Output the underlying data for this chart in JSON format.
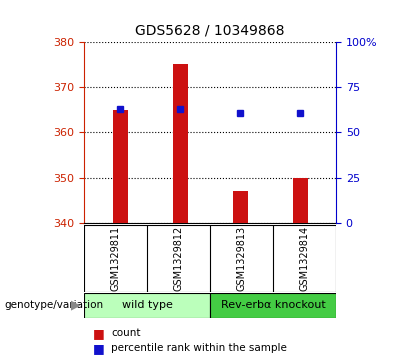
{
  "title": "GDS5628 / 10349868",
  "samples": [
    "GSM1329811",
    "GSM1329812",
    "GSM1329813",
    "GSM1329814"
  ],
  "counts": [
    365,
    375,
    347,
    350
  ],
  "percentile_ranks": [
    63,
    63,
    61,
    61
  ],
  "ylim_left": [
    340,
    380
  ],
  "ylim_right": [
    0,
    100
  ],
  "yticks_left": [
    340,
    350,
    360,
    370,
    380
  ],
  "yticks_right": [
    0,
    25,
    50,
    75,
    100
  ],
  "ytick_labels_right": [
    "0",
    "25",
    "50",
    "75",
    "100%"
  ],
  "bar_color": "#cc1111",
  "dot_color": "#1111cc",
  "bar_bottom": 340,
  "groups": [
    {
      "label": "wild type",
      "samples": [
        0,
        1
      ],
      "color": "#bbffbb"
    },
    {
      "label": "Rev-erbα knockout",
      "samples": [
        2,
        3
      ],
      "color": "#44cc44"
    }
  ],
  "legend_items": [
    {
      "color": "#cc1111",
      "label": "count"
    },
    {
      "color": "#1111cc",
      "label": "percentile rank within the sample"
    }
  ],
  "genotype_label": "genotype/variation",
  "background_color": "#ffffff",
  "plot_bg_color": "#ffffff",
  "grid_color": "#000000",
  "left_axis_color": "#cc2200",
  "right_axis_color": "#0000cc",
  "sample_bg_color": "#cccccc",
  "bar_width": 0.25
}
